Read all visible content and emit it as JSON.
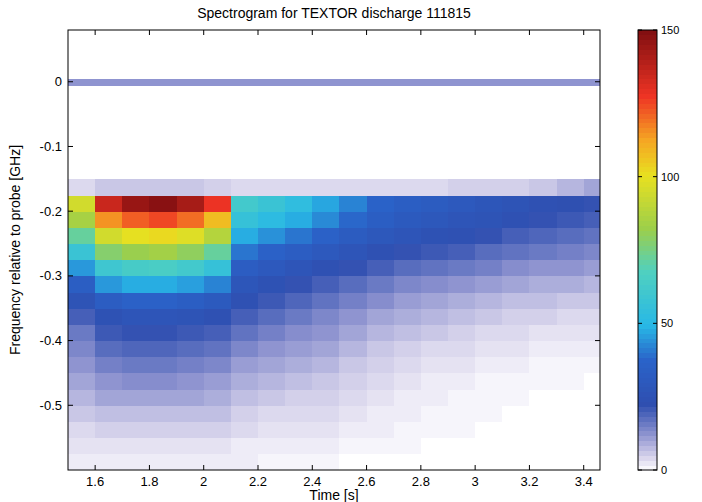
{
  "chart_data": {
    "type": "heatmap",
    "title": "Spectrogram for TEXTOR discharge 111815",
    "x_label": "Time [s]",
    "y_label": "Frequency relative to probe [GHz]",
    "xlim": [
      1.5,
      3.46
    ],
    "ylim": [
      -0.6,
      0.08
    ],
    "xticks": [
      1.6,
      1.8,
      2,
      2.2,
      2.4,
      2.6,
      2.8,
      3,
      3.2,
      3.4
    ],
    "yticks": [
      -0.5,
      -0.4,
      -0.3,
      -0.2,
      -0.1,
      0
    ],
    "x_bins": [
      1.5,
      1.6,
      1.7,
      1.8,
      1.9,
      2.0,
      2.1,
      2.2,
      2.3,
      2.4,
      2.5,
      2.6,
      2.7,
      2.8,
      2.9,
      3.0,
      3.1,
      3.2,
      3.3,
      3.4,
      3.5
    ],
    "y_bins": [
      -0.6,
      -0.575,
      -0.55,
      -0.525,
      -0.5,
      -0.475,
      -0.45,
      -0.425,
      -0.4,
      -0.375,
      -0.35,
      -0.325,
      -0.3,
      -0.275,
      -0.25,
      -0.225,
      -0.2,
      -0.175,
      -0.15,
      -0.005,
      0.005
    ],
    "values": [
      [
        2,
        2,
        2,
        2,
        2,
        2,
        2,
        1,
        1,
        1,
        0,
        0,
        0,
        0,
        0,
        0,
        0,
        0,
        0,
        0
      ],
      [
        3,
        3,
        3,
        3,
        3,
        3,
        2,
        2,
        2,
        2,
        1,
        1,
        1,
        0,
        0,
        0,
        0,
        0,
        0,
        0
      ],
      [
        4,
        5,
        5,
        5,
        5,
        5,
        4,
        3,
        3,
        3,
        2,
        2,
        1,
        1,
        1,
        0,
        0,
        0,
        0,
        0
      ],
      [
        6,
        7,
        7,
        7,
        7,
        7,
        5,
        4,
        4,
        4,
        3,
        2,
        2,
        1,
        1,
        1,
        0,
        0,
        0,
        0
      ],
      [
        8,
        10,
        10,
        10,
        10,
        9,
        7,
        6,
        5,
        5,
        4,
        3,
        2,
        2,
        1,
        1,
        1,
        0,
        0,
        0
      ],
      [
        10,
        12,
        13,
        13,
        12,
        11,
        9,
        8,
        7,
        6,
        5,
        4,
        3,
        2,
        2,
        1,
        1,
        1,
        1,
        0
      ],
      [
        12,
        15,
        16,
        16,
        15,
        14,
        11,
        10,
        9,
        8,
        6,
        5,
        4,
        3,
        3,
        2,
        2,
        1,
        1,
        1
      ],
      [
        14,
        18,
        19,
        19,
        18,
        17,
        14,
        12,
        11,
        10,
        8,
        6,
        5,
        4,
        4,
        3,
        3,
        2,
        2,
        2
      ],
      [
        16,
        21,
        22,
        22,
        21,
        20,
        17,
        15,
        13,
        12,
        10,
        8,
        7,
        6,
        5,
        4,
        4,
        3,
        3,
        3
      ],
      [
        20,
        25,
        27,
        27,
        26,
        24,
        20,
        18,
        16,
        14,
        12,
        10,
        9,
        8,
        7,
        6,
        5,
        5,
        4,
        4
      ],
      [
        26,
        33,
        36,
        36,
        34,
        31,
        24,
        21,
        19,
        17,
        15,
        13,
        11,
        10,
        9,
        8,
        7,
        7,
        6,
        6
      ],
      [
        34,
        45,
        48,
        48,
        46,
        42,
        28,
        25,
        22,
        20,
        18,
        16,
        14,
        13,
        12,
        11,
        10,
        9,
        9,
        8
      ],
      [
        45,
        60,
        64,
        65,
        62,
        56,
        33,
        30,
        27,
        24,
        22,
        20,
        18,
        17,
        16,
        15,
        13,
        12,
        12,
        11
      ],
      [
        58,
        78,
        82,
        84,
        80,
        72,
        40,
        36,
        33,
        30,
        27,
        24,
        22,
        21,
        20,
        18,
        17,
        16,
        15,
        14
      ],
      [
        72,
        95,
        100,
        102,
        98,
        88,
        48,
        44,
        40,
        36,
        32,
        29,
        27,
        25,
        24,
        22,
        20,
        19,
        18,
        17
      ],
      [
        85,
        115,
        122,
        125,
        120,
        108,
        56,
        52,
        48,
        43,
        38,
        34,
        31,
        29,
        27,
        26,
        24,
        22,
        21,
        20
      ],
      [
        95,
        135,
        145,
        148,
        142,
        128,
        62,
        58,
        53,
        47,
        42,
        37,
        34,
        32,
        30,
        28,
        26,
        24,
        23,
        22
      ],
      [
        4,
        6,
        6,
        6,
        6,
        5,
        4,
        4,
        4,
        4,
        4,
        4,
        4,
        4,
        5,
        5,
        5,
        6,
        8,
        10
      ],
      [
        0,
        0,
        0,
        0,
        0,
        0,
        0,
        0,
        0,
        0,
        0,
        0,
        0,
        0,
        0,
        0,
        0,
        0,
        0,
        0
      ],
      [
        12,
        12,
        12,
        12,
        12,
        12,
        12,
        12,
        12,
        12,
        12,
        12,
        12,
        12,
        12,
        12,
        12,
        12,
        12,
        12
      ]
    ],
    "colorbar_range": [
      0,
      150
    ],
    "colorbar_ticks": [
      0,
      50,
      100,
      150
    ]
  }
}
